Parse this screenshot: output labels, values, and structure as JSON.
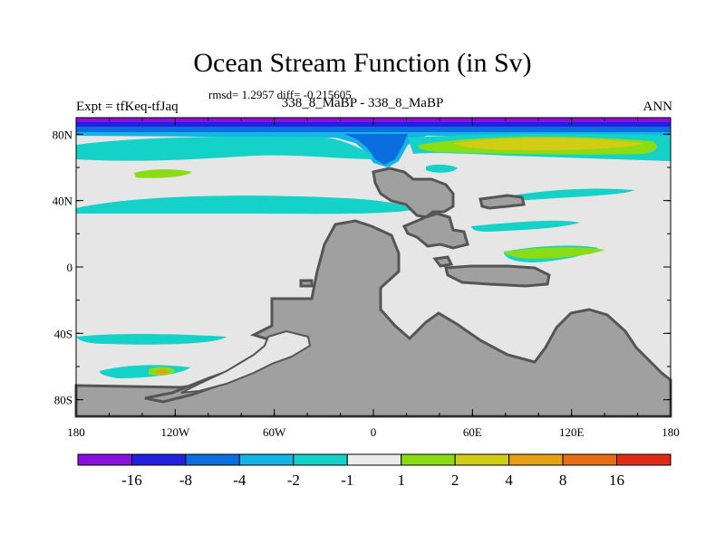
{
  "figure": {
    "title": "Ocean Stream Function (in Sv)",
    "stats": "rmsd= 1.2957 diff= -0.215605",
    "left_label": "Expt = tfKeq-tfJaq",
    "center_label": "338_8_MaBP - 338_8_MaBP",
    "right_label": "ANN"
  },
  "map": {
    "x_ticks": [
      "180",
      "120W",
      "60W",
      "0",
      "60E",
      "120E",
      "180"
    ],
    "y_ticks": [
      "80N",
      "40N",
      "0",
      "40S",
      "80S"
    ],
    "land_color": "#a0a0a0",
    "coast_color": "#555555",
    "background_color": "#e6e6e6"
  },
  "colorbar": {
    "labels": [
      "-16",
      "-8",
      "-4",
      "-2",
      "-1",
      "1",
      "2",
      "4",
      "8",
      "16"
    ],
    "colors": [
      "#8a10e0",
      "#2020e0",
      "#0a6ee0",
      "#14b4e6",
      "#14d2c8",
      "#ececec",
      "#8adc14",
      "#d2cc14",
      "#e6a014",
      "#e66e14",
      "#e02c14"
    ]
  }
}
